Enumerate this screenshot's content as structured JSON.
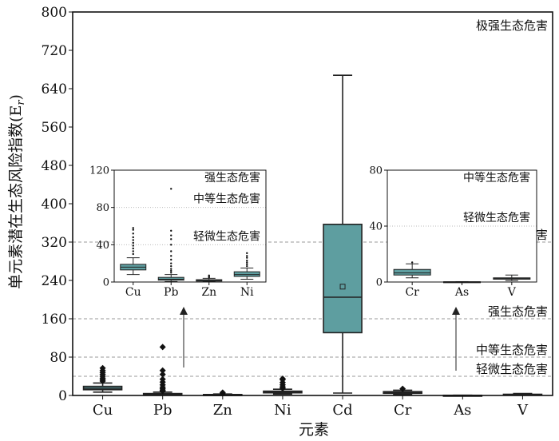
{
  "chart_data": [
    {
      "type": "box",
      "xlabel": "元素",
      "ylabel": "单元素潜在生态风险指数(E",
      "ylabel_sub": "r",
      "ylabel_close": ")",
      "ylim": [
        0,
        800
      ],
      "yticks": [
        0,
        80,
        160,
        240,
        320,
        400,
        480,
        560,
        640,
        720,
        800
      ],
      "categories": [
        "Cu",
        "Pb",
        "Zn",
        "Ni",
        "Cd",
        "Cr",
        "As",
        "V"
      ],
      "box_color": "#5e9ea0",
      "boxes": [
        {
          "name": "Cu",
          "whislo": 7,
          "q1": 12,
          "med": 15,
          "q3": 19,
          "whishi": 26,
          "fliers": [
            30,
            33,
            36,
            40,
            44,
            48,
            52,
            57
          ]
        },
        {
          "name": "Pb",
          "whislo": 0.5,
          "q1": 1.5,
          "med": 2.5,
          "q3": 4,
          "whishi": 7,
          "fliers": [
            9,
            11,
            14,
            17,
            22,
            28,
            34,
            44,
            52,
            101
          ]
        },
        {
          "name": "Zn",
          "whislo": 0.3,
          "q1": 1,
          "med": 1.5,
          "q3": 2,
          "whishi": 3,
          "fliers": [
            4,
            6
          ]
        },
        {
          "name": "Ni",
          "whislo": 3,
          "q1": 5.5,
          "med": 7,
          "q3": 9,
          "whishi": 13,
          "fliers": [
            15,
            18,
            22,
            27,
            33,
            35
          ]
        },
        {
          "name": "Cd",
          "whislo": 5,
          "q1": 131,
          "med": 205,
          "q3": 357,
          "whishi": 668,
          "mean": 227,
          "fliers": []
        },
        {
          "name": "Cr",
          "whislo": 2,
          "q1": 4.5,
          "med": 6,
          "q3": 8,
          "whishi": 11,
          "fliers": [
            14
          ]
        },
        {
          "name": "As",
          "whislo": 0.1,
          "q1": 0.2,
          "med": 0.3,
          "q3": 0.4,
          "whishi": 0.6,
          "fliers": []
        },
        {
          "name": "V",
          "whislo": 1,
          "q1": 1.5,
          "med": 2,
          "q3": 2.5,
          "whishi": 4,
          "fliers": []
        }
      ],
      "thresholds": [
        {
          "value": 40,
          "label": "轻微生态危害"
        },
        {
          "value": 80,
          "label": "中等生态危害"
        },
        {
          "value": 160,
          "label": "强生态危害"
        },
        {
          "value": 320,
          "label": "很强生态危害"
        },
        {
          "value": 800,
          "label": "极强生态危害"
        }
      ]
    },
    {
      "type": "box",
      "ylim": [
        0,
        120
      ],
      "yticks": [
        0,
        40,
        80,
        120
      ],
      "categories": [
        "Cu",
        "Pb",
        "Zn",
        "Ni"
      ],
      "boxes": [
        {
          "name": "Cu",
          "whislo": 8,
          "q1": 13,
          "med": 16,
          "q3": 19,
          "whishi": 26,
          "fliers": [
            30,
            33,
            36,
            39,
            42,
            45,
            48,
            52,
            56,
            58
          ]
        },
        {
          "name": "Pb",
          "whislo": 0.5,
          "q1": 2,
          "med": 3,
          "q3": 5,
          "whishi": 8,
          "fliers": [
            10,
            12,
            14,
            17,
            20,
            24,
            28,
            33,
            40,
            46,
            50,
            55,
            100
          ]
        },
        {
          "name": "Zn",
          "whislo": 0.5,
          "q1": 1,
          "med": 1.8,
          "q3": 2.5,
          "whishi": 4,
          "fliers": [
            5,
            6,
            7
          ]
        },
        {
          "name": "Ni",
          "whislo": 3,
          "q1": 6,
          "med": 8,
          "q3": 11,
          "whishi": 15,
          "fliers": [
            17,
            19,
            21,
            23,
            26,
            28,
            31
          ]
        }
      ],
      "thresholds": [
        {
          "value": 40,
          "label": "轻微生态危害"
        },
        {
          "value": 80,
          "label": "中等生态危害"
        },
        {
          "value": 120,
          "label": "强生态危害"
        }
      ]
    },
    {
      "type": "box",
      "ylim": [
        0,
        80
      ],
      "yticks": [
        0,
        40,
        80
      ],
      "categories": [
        "Cr",
        "As",
        "V"
      ],
      "boxes": [
        {
          "name": "Cr",
          "whislo": 3,
          "q1": 5,
          "med": 6.5,
          "q3": 9,
          "whishi": 13,
          "fliers": [
            14
          ]
        },
        {
          "name": "As",
          "whislo": 0.05,
          "q1": 0.1,
          "med": 0.15,
          "q3": 0.2,
          "whishi": 0.3,
          "fliers": []
        },
        {
          "name": "V",
          "whislo": 1,
          "q1": 2,
          "med": 2.5,
          "q3": 3,
          "whishi": 5,
          "fliers": []
        }
      ],
      "thresholds": [
        {
          "value": 40,
          "label": "轻微生态危害"
        },
        {
          "value": 80,
          "label": "中等生态危害"
        }
      ]
    }
  ]
}
